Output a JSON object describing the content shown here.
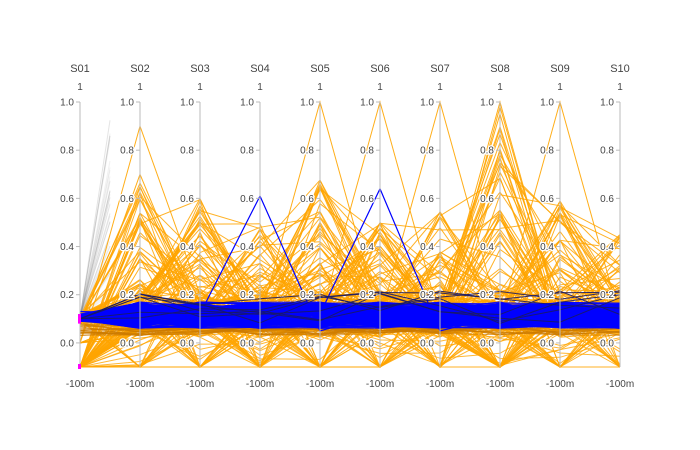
{
  "chart_data": {
    "type": "parallel_coordinates",
    "dimensions": [
      "S01",
      "S02",
      "S03",
      "S04",
      "S05",
      "S06",
      "S07",
      "S08",
      "S09",
      "S10"
    ],
    "axis_top_label": "1",
    "axis_bottom_label": "-100m",
    "ticks": [
      0.0,
      0.2,
      0.4,
      0.6,
      0.8,
      1.0
    ],
    "tick_labels": [
      "0.0",
      "0.2",
      "0.4",
      "0.6",
      "0.8",
      "1.0"
    ],
    "y_range": [
      -0.1,
      1.0
    ],
    "colors": {
      "orange": "#ffa500",
      "blue": "#0000ff",
      "gray": "#888888",
      "navy": "#1a1a66",
      "orange_dark": "#cc7a00",
      "magenta": "#ff00ff",
      "axis": "#bbbbbb"
    },
    "blue_peaks": [
      {
        "from": "S03",
        "to": "S05",
        "peak_axis": "S04",
        "peak_value": 0.61
      },
      {
        "from": "S05",
        "to": "S07",
        "peak_axis": "S06",
        "peak_value": 0.64
      }
    ]
  }
}
